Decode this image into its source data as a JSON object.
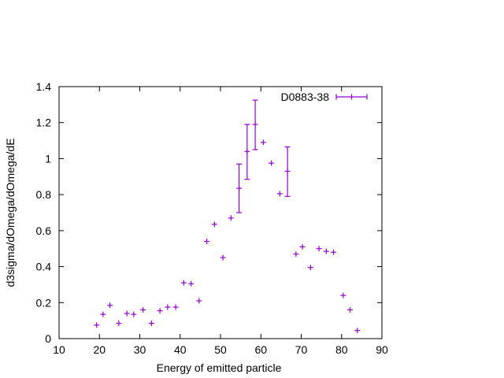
{
  "chart_data": {
    "type": "scatter",
    "xlabel": "Energy of emitted particle",
    "ylabel": "d3sigma/dOmega/dOmega/dE",
    "xlim": [
      10,
      90
    ],
    "ylim": [
      0,
      1.4
    ],
    "xticks": [
      "10",
      "20",
      "30",
      "40",
      "50",
      "60",
      "70",
      "80",
      "90"
    ],
    "yticks": [
      "0",
      "0.2",
      "0.4",
      "0.6",
      "0.8",
      "1",
      "1.2",
      "1.4"
    ],
    "legend_position": "top-right",
    "grid": false,
    "color": "#9400d3",
    "series": [
      {
        "name": "D0883-38",
        "points": [
          {
            "x": 19.3,
            "y": 0.075
          },
          {
            "x": 20.9,
            "y": 0.135
          },
          {
            "x": 22.6,
            "y": 0.185
          },
          {
            "x": 24.8,
            "y": 0.085
          },
          {
            "x": 26.8,
            "y": 0.14
          },
          {
            "x": 28.5,
            "y": 0.135
          },
          {
            "x": 30.8,
            "y": 0.16
          },
          {
            "x": 32.9,
            "y": 0.085
          },
          {
            "x": 35.0,
            "y": 0.155
          },
          {
            "x": 36.9,
            "y": 0.175
          },
          {
            "x": 38.9,
            "y": 0.175
          },
          {
            "x": 40.9,
            "y": 0.31
          },
          {
            "x": 42.7,
            "y": 0.305
          },
          {
            "x": 44.7,
            "y": 0.21
          },
          {
            "x": 46.6,
            "y": 0.54
          },
          {
            "x": 48.5,
            "y": 0.635
          },
          {
            "x": 50.6,
            "y": 0.45
          },
          {
            "x": 52.6,
            "y": 0.67
          },
          {
            "x": 54.6,
            "y": 0.835,
            "err_low": 0.7,
            "err_high": 0.97
          },
          {
            "x": 56.6,
            "y": 1.04,
            "err_low": 0.885,
            "err_high": 1.19
          },
          {
            "x": 58.6,
            "y": 1.19,
            "err_low": 1.05,
            "err_high": 1.325
          },
          {
            "x": 60.6,
            "y": 1.09
          },
          {
            "x": 62.6,
            "y": 0.975
          },
          {
            "x": 64.7,
            "y": 0.805
          },
          {
            "x": 66.6,
            "y": 0.93,
            "err_low": 0.79,
            "err_high": 1.065
          },
          {
            "x": 68.7,
            "y": 0.47
          },
          {
            "x": 70.3,
            "y": 0.51
          },
          {
            "x": 72.3,
            "y": 0.395
          },
          {
            "x": 74.4,
            "y": 0.5
          },
          {
            "x": 76.2,
            "y": 0.485
          },
          {
            "x": 78.0,
            "y": 0.48
          },
          {
            "x": 80.4,
            "y": 0.24
          },
          {
            "x": 82.1,
            "y": 0.16
          },
          {
            "x": 83.9,
            "y": 0.045
          }
        ]
      }
    ]
  }
}
